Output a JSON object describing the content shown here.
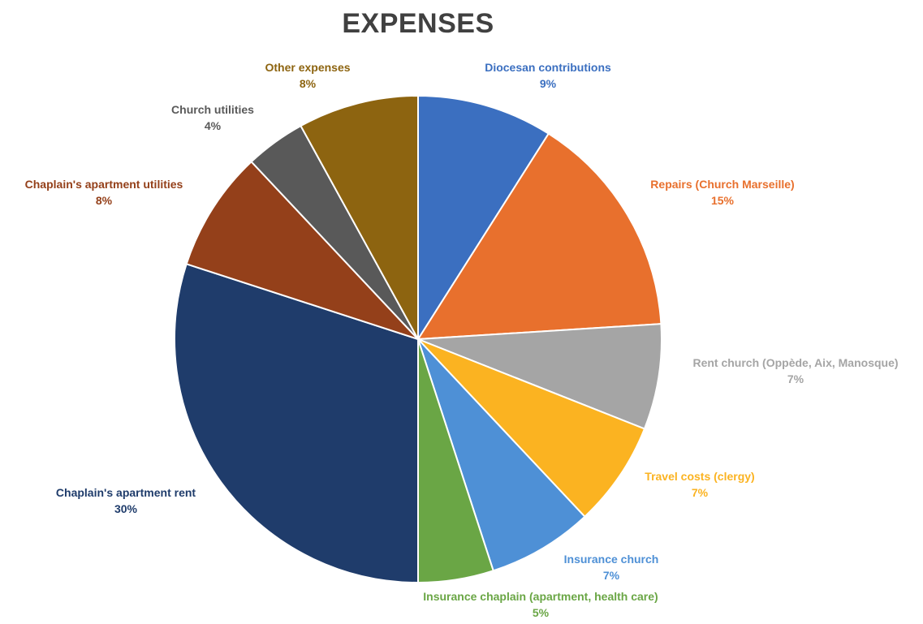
{
  "chart_data": {
    "type": "pie",
    "title": "EXPENSES",
    "start_angle_deg": 0,
    "direction": "clockwise",
    "slices": [
      {
        "name": "Diocesan contributions",
        "value": 9,
        "label": "9%",
        "color": "#3b6fc0"
      },
      {
        "name": "Repairs (Church Marseille)",
        "value": 15,
        "label": "15%",
        "color": "#e8702d"
      },
      {
        "name": "Rent church (Oppède, Aix, Manosque)",
        "value": 7,
        "label": "7%",
        "color": "#a5a5a5"
      },
      {
        "name": "Travel costs (clergy)",
        "value": 7,
        "label": "7%",
        "color": "#fbb321"
      },
      {
        "name": "Insurance church",
        "value": 7,
        "label": "7%",
        "color": "#4e90d6"
      },
      {
        "name": "Insurance chaplain (apartment, health care)",
        "value": 5,
        "label": "5%",
        "color": "#6aa645"
      },
      {
        "name": "Chaplain's apartment rent",
        "value": 30,
        "label": "30%",
        "color": "#1f3c6b"
      },
      {
        "name": "Chaplain's apartment utilities",
        "value": 8,
        "label": "8%",
        "color": "#94401a"
      },
      {
        "name": "Church utilities",
        "value": 4,
        "label": "4%",
        "color": "#595959"
      },
      {
        "name": "Other expenses",
        "value": 8,
        "label": "8%",
        "color": "#8d6410"
      }
    ],
    "label_colors": {
      "Diocesan contributions": "#3b6fc0",
      "Repairs (Church Marseille)": "#e8702d",
      "Rent church (Oppède, Aix, Manosque)": "#a5a5a5",
      "Travel costs (clergy)": "#fbb321",
      "Insurance church": "#4e90d6",
      "Insurance chaplain (apartment, health care)": "#6aa645",
      "Chaplain's apartment rent": "#1f3c6b",
      "Chaplain's apartment utilities": "#94401a",
      "Church utilities": "#595959",
      "Other expenses": "#8d6410"
    },
    "legend": "none",
    "labels": "outside"
  }
}
